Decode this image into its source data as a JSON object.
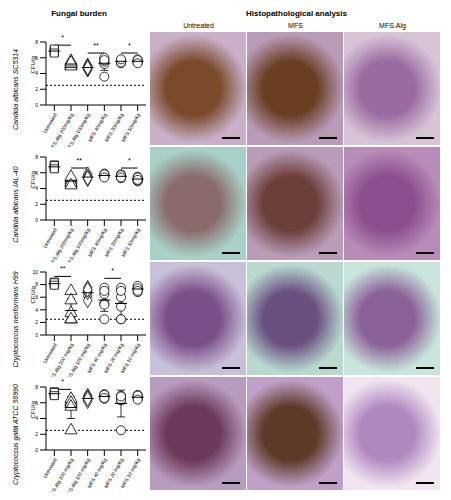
{
  "panel_titles": {
    "fungal_burden": "Fungal burden",
    "histopathology": "Histopathological analysis"
  },
  "histology_columns": [
    "Untreated",
    "MFS",
    "MFS.Alg"
  ],
  "chart_data": [
    {
      "type": "scatter",
      "title": "Candida albicans SC5314",
      "y_label": "CFU/g",
      "color": "#000000",
      "categories": [
        "Untreated",
        "MFS.Alg 200mg/Kg",
        "MFS.Alg 100mg/Kg",
        "MFS 40mg/Kg",
        "MFS 20mg/Kg",
        "MFS 10mg/Kg"
      ],
      "ylim": [
        0,
        8
      ],
      "yticks": [
        0,
        2,
        4,
        6,
        8
      ],
      "detection_limit": 2.5,
      "groups": [
        {
          "marker": "square",
          "values": [
            6.9,
            7.0,
            6.7,
            6.8,
            7.1,
            6.6
          ],
          "mean": 6.85,
          "sd": 0.2
        },
        {
          "marker": "triangle",
          "values": [
            5.3,
            5.0,
            5.6,
            4.9,
            5.2,
            5.4
          ],
          "mean": 5.2,
          "sd": 0.25
        },
        {
          "marker": "diamond",
          "values": [
            4.8,
            4.5,
            5.0,
            4.6,
            4.9,
            4.7
          ],
          "mean": 4.75,
          "sd": 0.2
        },
        {
          "marker": "circle",
          "values": [
            5.8,
            5.2,
            3.6,
            6.0,
            5.5,
            5.7
          ],
          "mean": 5.3,
          "sd": 0.9
        },
        {
          "marker": "circle",
          "values": [
            5.5,
            5.6,
            5.3,
            5.7,
            5.4,
            5.8
          ],
          "mean": 5.55,
          "sd": 0.2
        },
        {
          "marker": "circle",
          "values": [
            5.6,
            5.4,
            5.8,
            5.5,
            5.7,
            5.3
          ],
          "mean": 5.55,
          "sd": 0.2
        }
      ],
      "significance": [
        {
          "text": "*",
          "from": 0,
          "to": 1,
          "y": 7.6
        },
        {
          "text": "**",
          "from": 2,
          "to": 3,
          "y": 6.6
        },
        {
          "text": "*",
          "from": 4,
          "to": 5,
          "y": 6.6
        }
      ]
    },
    {
      "type": "scatter",
      "title": "Candida albicans IAL-40",
      "y_label": "CFU/g",
      "color": "#000000",
      "categories": [
        "Untreated",
        "MFS.Alg 200mg/Kg",
        "MFS.Alg 100mg/Kg",
        "MFS 40mg/Kg",
        "MFS 20mg/Kg",
        "MFS 10mg/Kg"
      ],
      "ylim": [
        0,
        8
      ],
      "yticks": [
        0,
        2,
        4,
        6,
        8
      ],
      "detection_limit": 2.5,
      "groups": [
        {
          "marker": "square",
          "values": [
            6.8,
            6.6,
            7.0,
            6.7,
            6.9,
            6.5
          ],
          "mean": 6.75,
          "sd": 0.2
        },
        {
          "marker": "triangle",
          "values": [
            5.0,
            4.6,
            5.3,
            4.8,
            5.5,
            4.4
          ],
          "mean": 4.95,
          "sd": 0.4
        },
        {
          "marker": "diamond",
          "values": [
            5.4,
            5.6,
            5.2,
            5.8,
            5.5,
            5.3
          ],
          "mean": 5.45,
          "sd": 0.2
        },
        {
          "marker": "circle",
          "values": [
            5.7,
            5.5,
            5.9,
            5.6,
            5.8,
            5.4
          ],
          "mean": 5.65,
          "sd": 0.2
        },
        {
          "marker": "circle",
          "values": [
            5.6,
            5.3,
            5.8,
            5.5,
            5.7,
            5.4
          ],
          "mean": 5.55,
          "sd": 0.2
        },
        {
          "marker": "circle",
          "values": [
            5.2,
            4.9,
            5.5,
            5.0,
            5.4,
            5.1
          ],
          "mean": 5.2,
          "sd": 0.2
        }
      ],
      "significance": [
        {
          "text": "**",
          "from": 1,
          "to": 2,
          "y": 6.6
        },
        {
          "text": "*",
          "from": 4,
          "to": 5,
          "y": 6.6
        }
      ]
    },
    {
      "type": "scatter",
      "title": "Cryptococcus neoformans H99",
      "y_label": "CFU/g",
      "color": "#000000",
      "categories": [
        "Untreated",
        "MFS.Alg 200 mg/Kg",
        "MFS.Alg 100 mg/Kg",
        "MFS 40 mg/Kg",
        "MFS 20 mg/Kg",
        "MFS 10 mg/Kg"
      ],
      "ylim": [
        0,
        10
      ],
      "yticks": [
        0,
        2,
        4,
        6,
        8,
        10
      ],
      "detection_limit": 2.5,
      "groups": [
        {
          "marker": "square",
          "values": [
            8.2,
            8.0,
            8.4,
            8.1,
            8.3,
            7.9
          ],
          "mean": 8.15,
          "sd": 0.2
        },
        {
          "marker": "triangle",
          "values": [
            2.5,
            2.5,
            3.5,
            7.0,
            2.5,
            5.5
          ],
          "mean": 3.9,
          "sd": 1.9
        },
        {
          "marker": "diamond",
          "values": [
            7.0,
            6.2,
            7.5,
            5.5,
            6.8,
            7.2
          ],
          "mean": 6.7,
          "sd": 0.7
        },
        {
          "marker": "circle",
          "values": [
            7.5,
            2.5,
            6.5,
            5.0,
            7.0,
            4.8
          ],
          "mean": 5.55,
          "sd": 1.8
        },
        {
          "marker": "circle",
          "values": [
            2.5,
            6.0,
            7.5,
            4.5,
            2.5,
            7.0
          ],
          "mean": 5.0,
          "sd": 2.1
        },
        {
          "marker": "circle",
          "values": [
            7.6,
            7.2,
            7.8,
            6.8,
            7.4,
            7.0
          ],
          "mean": 7.3,
          "sd": 0.35
        }
      ],
      "significance": [
        {
          "text": "**",
          "from": 0,
          "to": 1,
          "y": 9.3
        },
        {
          "text": "*",
          "from": 3,
          "to": 4,
          "y": 9.0
        }
      ]
    },
    {
      "type": "scatter",
      "title": "Cryptococcus gattii ATCC 56990",
      "y_label": "CFU/g",
      "color": "#000000",
      "categories": [
        "Untreated",
        "MFS.Alg 200 mg/Kg",
        "MFS.Alg 100 mg/Kg",
        "MFS 40 mg/Kg",
        "MFS 20 mg/Kg",
        "MFS 10 mg/Kg"
      ],
      "ylim": [
        0,
        8
      ],
      "yticks": [
        0,
        2,
        4,
        6,
        8
      ],
      "detection_limit": 2.5,
      "groups": [
        {
          "marker": "square",
          "values": [
            7.2,
            7.0,
            7.4,
            7.1,
            7.3,
            6.9
          ],
          "mean": 7.15,
          "sd": 0.2
        },
        {
          "marker": "triangle",
          "values": [
            6.2,
            5.8,
            2.5,
            6.5,
            6.0,
            5.5
          ],
          "mean": 5.4,
          "sd": 1.4
        },
        {
          "marker": "diamond",
          "values": [
            6.6,
            6.4,
            6.9,
            6.2,
            6.7,
            6.5
          ],
          "mean": 6.55,
          "sd": 0.25
        },
        {
          "marker": "circle",
          "values": [
            6.9,
            6.5,
            7.1,
            6.7,
            7.0,
            6.6
          ],
          "mean": 6.8,
          "sd": 0.2
        },
        {
          "marker": "circle",
          "values": [
            6.6,
            6.3,
            6.9,
            6.4,
            6.8,
            2.5
          ],
          "mean": 5.9,
          "sd": 1.7
        },
        {
          "marker": "circle",
          "values": [
            6.8,
            6.5,
            7.0,
            6.6,
            6.9,
            6.4
          ],
          "mean": 6.7,
          "sd": 0.2
        }
      ],
      "significance": [
        {
          "text": "*",
          "from": 0,
          "to": 1,
          "y": 7.7
        }
      ]
    }
  ]
}
